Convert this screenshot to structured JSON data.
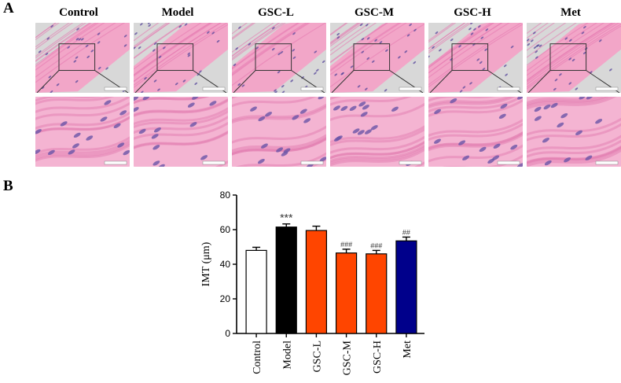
{
  "panel_a": {
    "label": "A",
    "groups": [
      "Control",
      "Model",
      "GSC-L",
      "GSC-M",
      "GSC-H",
      "Met"
    ]
  },
  "panel_b": {
    "label": "B"
  },
  "chart_data": {
    "type": "bar",
    "categories": [
      "Control",
      "Model",
      "GSC-L",
      "GSC-M",
      "GSC-H",
      "Met"
    ],
    "values": [
      48,
      61.5,
      59.5,
      46.5,
      46,
      53.5
    ],
    "errors": [
      1.8,
      1.8,
      2.5,
      2.2,
      2.0,
      2.2
    ],
    "annotations": [
      "",
      "***",
      "",
      "###",
      "###",
      "##"
    ],
    "colors": [
      "#ffffff",
      "#000000",
      "#ff4500",
      "#ff4500",
      "#ff4500",
      "#00008b"
    ],
    "ylabel": "IMT (μm)",
    "xlabel": "",
    "ylim": [
      0,
      80
    ],
    "yticks": [
      0,
      20,
      40,
      60,
      80
    ],
    "grid": false
  }
}
